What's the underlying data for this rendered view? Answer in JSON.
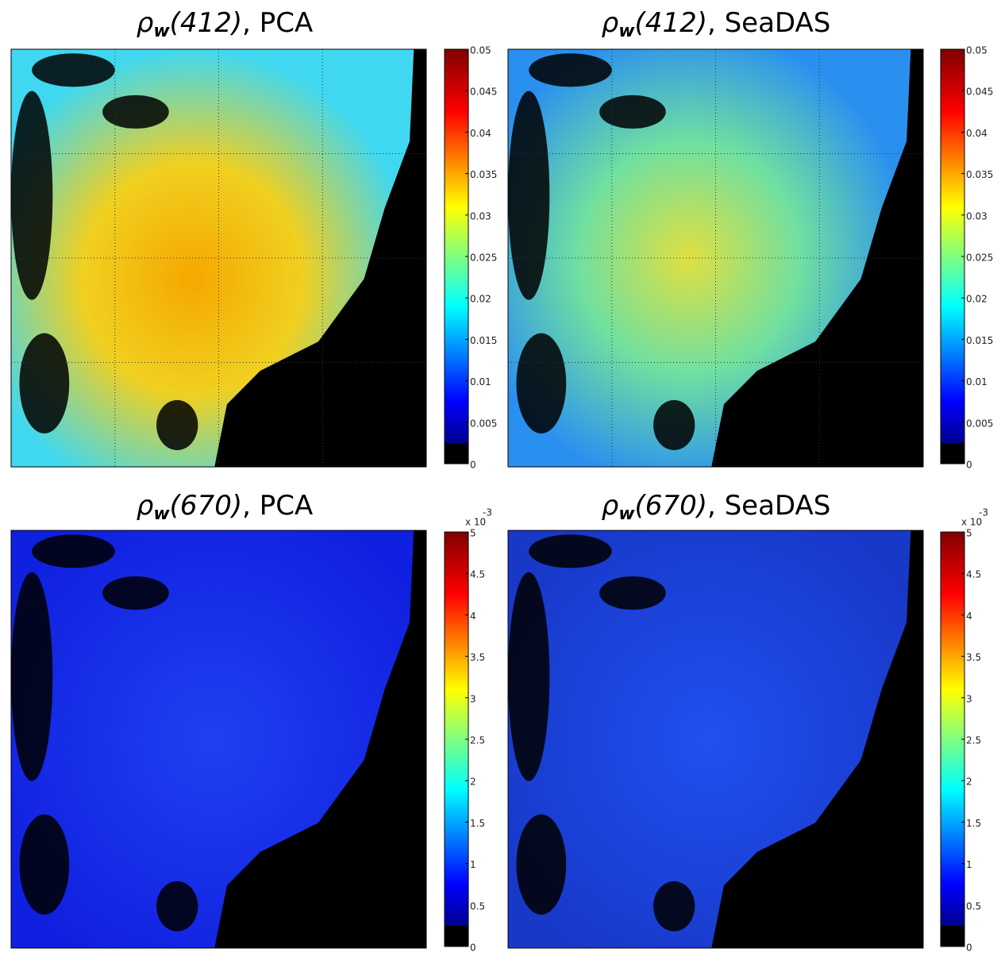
{
  "panels": [
    {
      "title": {
        "symbol": "ρ",
        "sub": "w",
        "band": "(412)",
        "method": ", PCA"
      },
      "colorbar": {
        "clim": [
          0,
          0.05
        ],
        "ticks": [
          0,
          0.005,
          0.01,
          0.015,
          0.02,
          0.025,
          0.03,
          0.035,
          0.04,
          0.045,
          0.05
        ]
      }
    },
    {
      "title": {
        "symbol": "ρ",
        "sub": "w",
        "band": "(412)",
        "method": ", SeaDAS"
      },
      "colorbar": {
        "clim": [
          0,
          0.05
        ],
        "ticks": [
          0,
          0.005,
          0.01,
          0.015,
          0.02,
          0.025,
          0.03,
          0.035,
          0.04,
          0.045,
          0.05
        ]
      }
    },
    {
      "title": {
        "symbol": "ρ",
        "sub": "w",
        "band": "(670)",
        "method": ", PCA"
      },
      "colorbar": {
        "clim": [
          0,
          5
        ],
        "ticks": [
          0,
          0.5,
          1,
          1.5,
          2,
          2.5,
          3,
          3.5,
          4,
          4.5,
          5
        ],
        "multiplier": "x 10",
        "exponent": "-3"
      }
    },
    {
      "title": {
        "symbol": "ρ",
        "sub": "w",
        "band": "(670)",
        "method": ", SeaDAS"
      },
      "colorbar": {
        "clim": [
          0,
          5
        ],
        "ticks": [
          0,
          0.5,
          1,
          1.5,
          2,
          2.5,
          3,
          3.5,
          4,
          4.5,
          5
        ],
        "multiplier": "x 10",
        "exponent": "-3"
      }
    }
  ]
}
